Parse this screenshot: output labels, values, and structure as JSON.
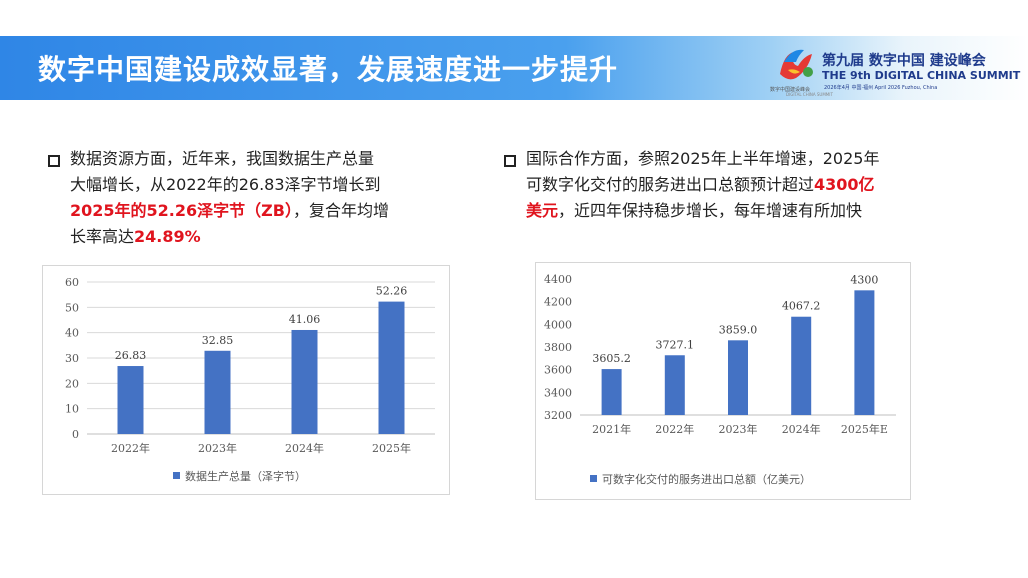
{
  "header": {
    "title": "数字中国建设成效显著，发展速度进一步提升",
    "logo_mark_text": "数字中国建设峰会",
    "logo_sub_text": "DIGITAL CHINA SUMMIT",
    "summit_name_cn": "第九届 数字中国 建设峰会",
    "summit_name_en": "THE 9th DIGITAL CHINA SUMMIT",
    "summit_date": "2026年4月 中国·福州 April 2026 Fuzhou, China"
  },
  "left": {
    "text_1": "数据资源方面，近年来，我国数据生产总量",
    "text_2": "大幅增长，从2022年的26.83泽字节增长到",
    "text_3_hl": "2025年的52.26泽字节（ZB）",
    "text_3_rest": "，复合年均增",
    "text_4": "长率高达",
    "text_4_hl": "24.89%"
  },
  "right": {
    "text_1": "国际合作方面，参照2025年上半年增速，2025年",
    "text_2": "可数字化交付的服务进出口总额预计超过",
    "text_2_hl": "4300亿",
    "text_3_hl": "美元",
    "text_3_rest": "，近四年保持稳步增长，每年增速有所加快"
  },
  "chart_data": [
    {
      "type": "bar",
      "categories": [
        "2022年",
        "2023年",
        "2024年",
        "2025年"
      ],
      "series": [
        {
          "name": "数据生产总量（泽字节）",
          "values": [
            26.83,
            32.85,
            41.06,
            52.26
          ]
        }
      ],
      "value_labels": [
        "26.83",
        "32.85",
        "41.06",
        "52.26"
      ],
      "ylim": [
        0,
        60
      ],
      "yticks": [
        0,
        10,
        20,
        30,
        40,
        50,
        60
      ],
      "ytick_labels": [
        "0",
        "10",
        "20",
        "30",
        "40",
        "50",
        "60"
      ],
      "grid": true,
      "legend": "bottom",
      "color": "#4472c4"
    },
    {
      "type": "bar",
      "categories": [
        "2021年",
        "2022年",
        "2023年",
        "2024年",
        "2025年E"
      ],
      "series": [
        {
          "name": "可数字化交付的服务进出口总额（亿美元）",
          "values": [
            3605.2,
            3727.1,
            3859.0,
            4067.2,
            4300
          ]
        }
      ],
      "value_labels": [
        "3605.2",
        "3727.1",
        "3859.0",
        "4067.2",
        "4300"
      ],
      "ylim": [
        3200,
        4400
      ],
      "yticks": [
        3200,
        3400,
        3600,
        3800,
        4000,
        4200,
        4400
      ],
      "ytick_labels": [
        "3200",
        "3400",
        "3600",
        "3800",
        "4000",
        "4200",
        "4400"
      ],
      "grid": false,
      "legend": "bottom",
      "color": "#4472c4"
    }
  ]
}
